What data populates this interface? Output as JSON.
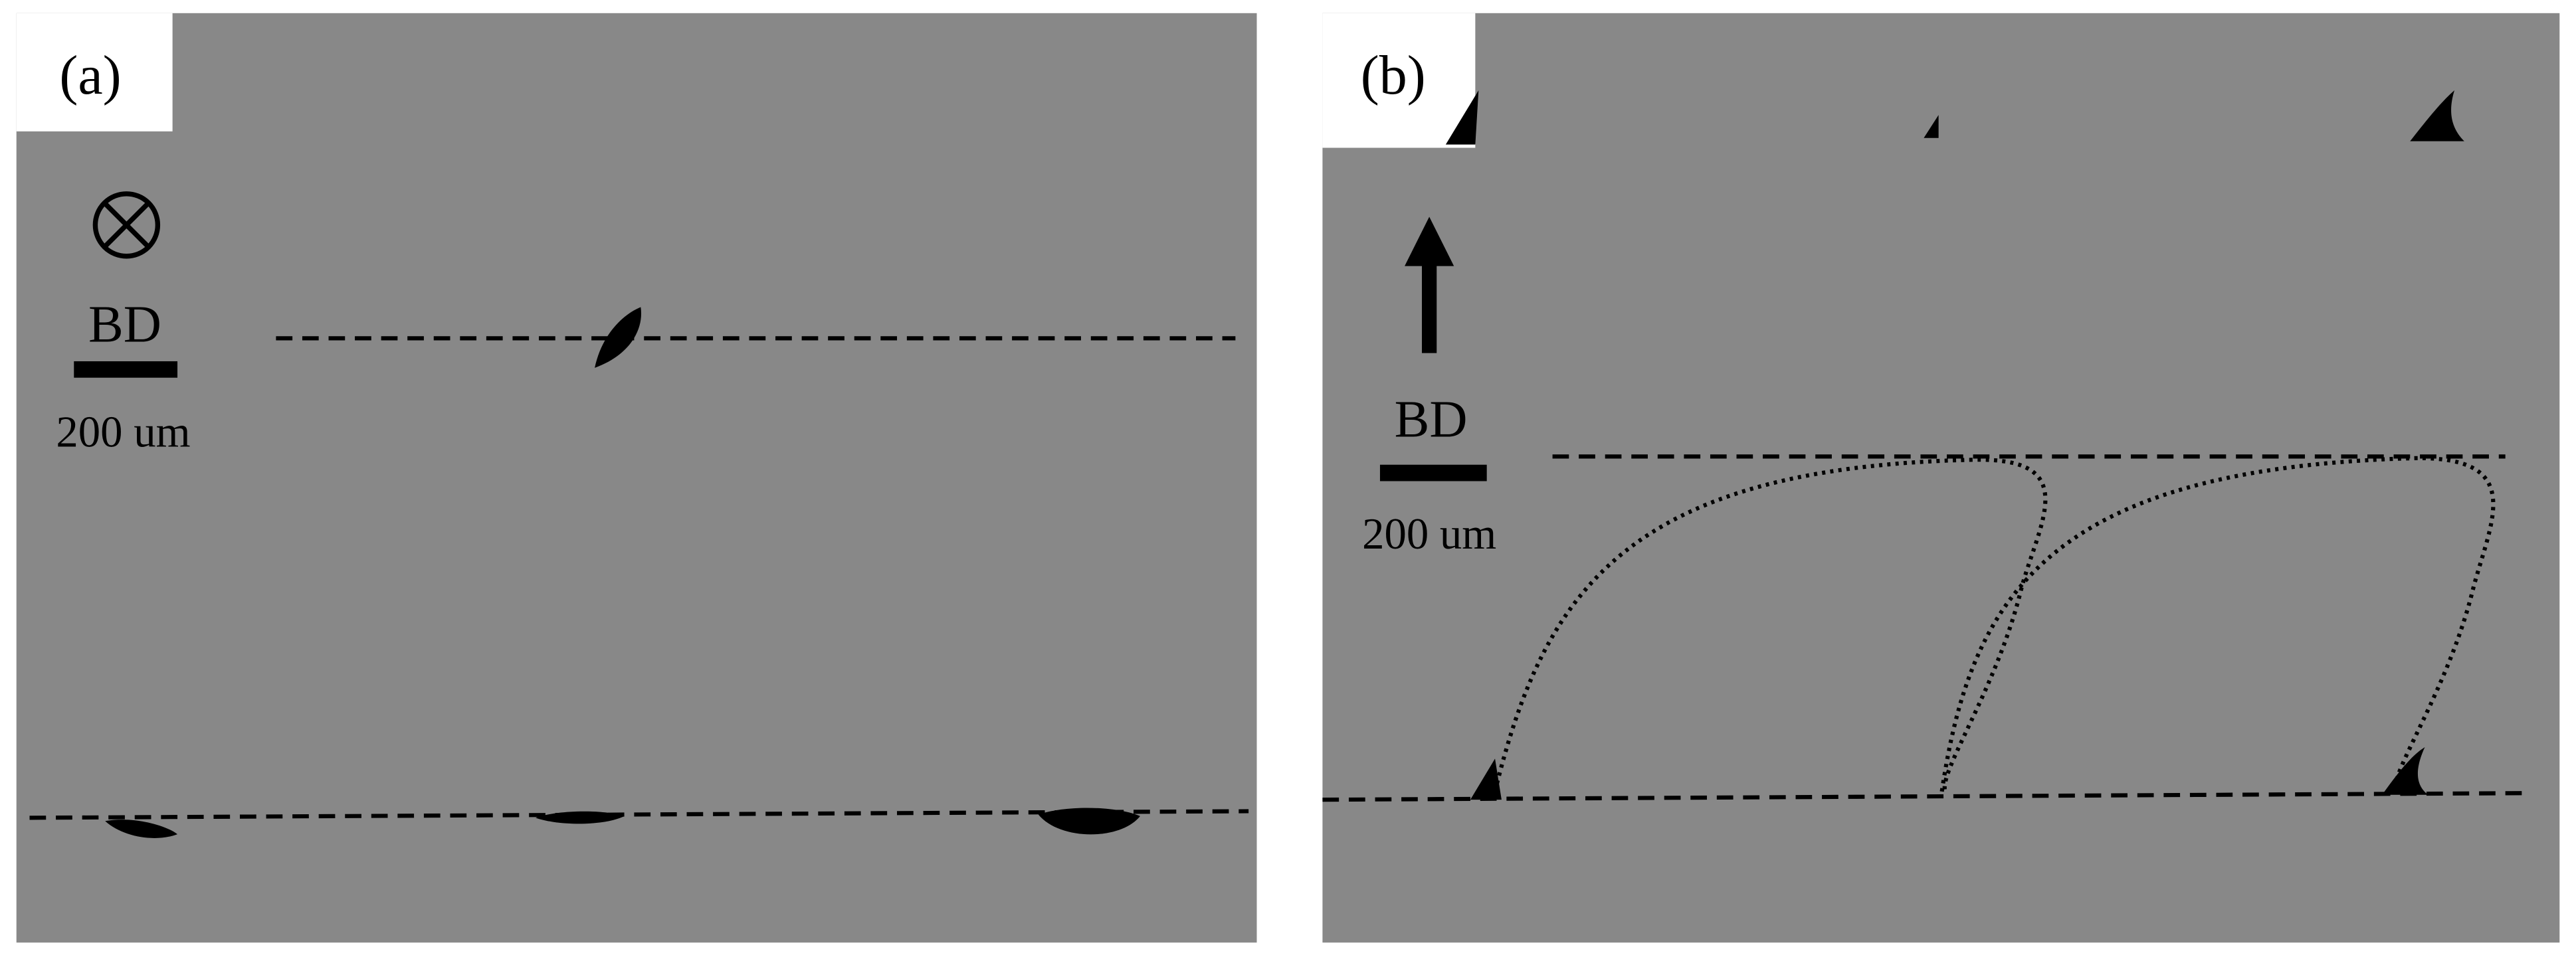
{
  "panels": [
    {
      "label": "(a)",
      "direction": "BD",
      "scale_bar": "200 um"
    },
    {
      "label": "(b)",
      "direction": "BD",
      "scale_bar": "200 um"
    }
  ]
}
